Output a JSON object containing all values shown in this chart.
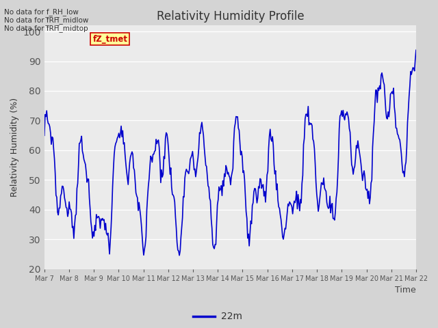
{
  "title": "Relativity Humidity Profile",
  "ylabel": "Relativity Humidity (%)",
  "xlabel": "Time",
  "legend_label": "22m",
  "ylim": [
    20,
    102
  ],
  "yticks": [
    20,
    30,
    40,
    50,
    60,
    70,
    80,
    90,
    100
  ],
  "line_color": "#0000cc",
  "line_width": 1.2,
  "fig_bg_color": "#d4d4d4",
  "plot_bg_color": "#ebebeb",
  "annotations": [
    "No data for f_RH_low",
    "No data for f̅RH̅_midlow",
    "No data for f̅RH̅_midtop"
  ],
  "legend_box_facecolor": "#ffff99",
  "legend_text_color": "#cc0000",
  "legend_box_edgecolor": "#cc0000",
  "start_day": 7,
  "end_day": 22,
  "num_points": 480
}
